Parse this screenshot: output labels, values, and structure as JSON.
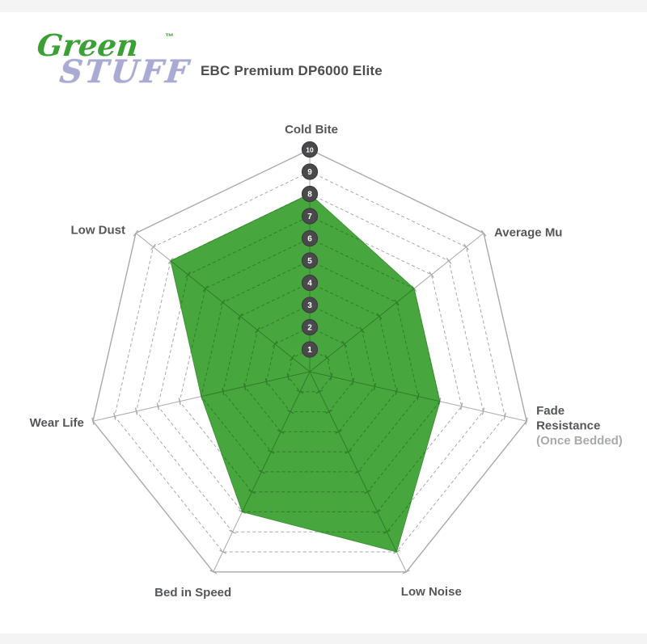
{
  "logo": {
    "line1": "Green",
    "line2": "STUFF",
    "trademark": "™"
  },
  "header": {
    "title": "EBC Premium DP6000 Elite"
  },
  "chart_data": {
    "type": "radar",
    "title": "EBC Premium DP6000 Elite",
    "scale": {
      "min": 1,
      "max": 10,
      "tick_labels": [
        1,
        2,
        3,
        4,
        5,
        6,
        7,
        8,
        9,
        10
      ]
    },
    "axes": [
      {
        "label": "Cold Bite"
      },
      {
        "label": "Average Mu"
      },
      {
        "label": "Fade Resistance",
        "sublabel": "(Once Bedded)",
        "wrap": true
      },
      {
        "label": "Low Noise"
      },
      {
        "label": "Bed in Speed"
      },
      {
        "label": "Wear Life"
      },
      {
        "label": "Low Dust"
      }
    ],
    "categories": [
      "Cold Bite",
      "Average Mu",
      "Fade Resistance (Once Bedded)",
      "Low Noise",
      "Bed in Speed",
      "Wear Life",
      "Low Dust"
    ],
    "series": [
      {
        "name": "EBC Premium DP6000 Elite",
        "values": [
          8,
          6,
          6,
          9,
          7,
          5,
          8
        ]
      }
    ],
    "grid": "dashed concentric heptagons, ticks on every axis",
    "legend_position": "none",
    "colors": {
      "fill_green": "#48a63e",
      "grid_inside_green": "#2f7d2a",
      "grid_gray": "#a9a9a9",
      "outer_ring_gray": "#9c9c9c",
      "scale_circle": "#4a4a4c",
      "scale_number": "#ffffff",
      "axis_label": "#55565a",
      "sublabel": "#a8aaad",
      "logo_green": "#3ba136",
      "logo_lavender": "#a9abd4"
    }
  }
}
